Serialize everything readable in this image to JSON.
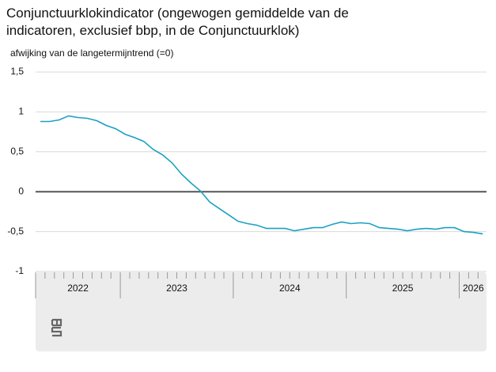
{
  "chart_data": {
    "type": "line",
    "title": "Conjunctuurklokindicator (ongewogen gemiddelde van de indicatoren, exclusief bbp, in de Conjunctuurklok)",
    "y_label": "afwijking van de langetermijntrend (=0)",
    "categories": [
      "2022",
      "2022",
      "2022",
      "2022",
      "2022",
      "2022",
      "2022",
      "2022",
      "2022",
      "2023",
      "2023",
      "2023",
      "2023",
      "2023",
      "2023",
      "2023",
      "2023",
      "2023",
      "2023",
      "2023",
      "2023",
      "2024",
      "2024",
      "2024",
      "2024",
      "2024",
      "2024",
      "2024",
      "2024",
      "2024",
      "2024",
      "2024",
      "2024",
      "2025",
      "2025",
      "2025",
      "2025",
      "2025",
      "2025",
      "2025",
      "2025",
      "2025",
      "2025",
      "2025",
      "2025",
      "2026",
      "2026",
      "2026"
    ],
    "values": [
      0.88,
      0.88,
      0.9,
      0.95,
      0.93,
      0.92,
      0.89,
      0.83,
      0.79,
      0.72,
      0.68,
      0.63,
      0.53,
      0.46,
      0.36,
      0.22,
      0.11,
      0.01,
      -0.13,
      -0.21,
      -0.29,
      -0.37,
      -0.4,
      -0.42,
      -0.46,
      -0.46,
      -0.46,
      -0.49,
      -0.47,
      -0.45,
      -0.45,
      -0.41,
      -0.38,
      -0.4,
      -0.39,
      -0.4,
      -0.45,
      -0.46,
      -0.47,
      -0.49,
      -0.47,
      -0.46,
      -0.47,
      -0.45,
      -0.45,
      -0.5,
      -0.51,
      -0.53
    ],
    "color": "#1ba1c2",
    "ylim": [
      -1,
      1.5
    ],
    "yticks": [
      {
        "value": -1,
        "label": "-1"
      },
      {
        "value": -0.5,
        "label": "-0,5"
      },
      0,
      {
        "value": 0.5,
        "label": "0,5"
      },
      1,
      {
        "value": 1.5,
        "label": "1,5"
      }
    ],
    "grid": true
  }
}
